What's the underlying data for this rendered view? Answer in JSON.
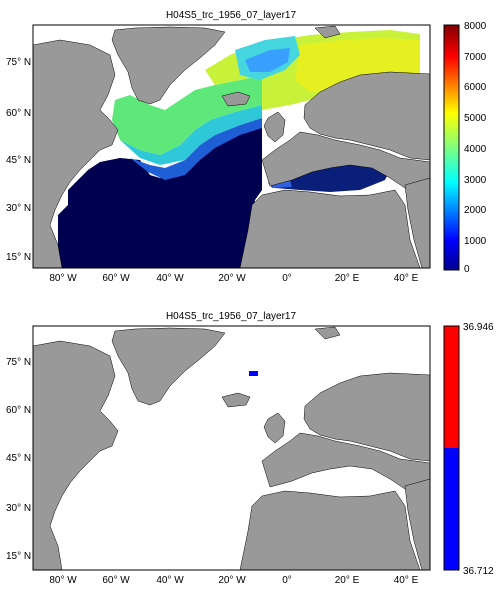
{
  "figure": {
    "panels": [
      {
        "title": "H04S5_trc_1956_07_layer17",
        "xticks": [
          "80° W",
          "60° W",
          "40° W",
          "20° W",
          "0°",
          "20° E",
          "40° E"
        ],
        "yticks": [
          "75° N",
          "60° N",
          "45° N",
          "30° N",
          "15° N"
        ],
        "colorbar": {
          "ticks": [
            "0",
            "1000",
            "2000",
            "3000",
            "4000",
            "5000",
            "6000",
            "7000",
            "8000"
          ],
          "range": [
            0,
            8000
          ],
          "colormap": "jet"
        }
      },
      {
        "title": "H04S5_trc_1956_07_layer17",
        "xticks": [
          "80° W",
          "60° W",
          "40° W",
          "20° W",
          "0°",
          "20° E",
          "40° E"
        ],
        "yticks": [
          "75° N",
          "60° N",
          "45° N",
          "30° N",
          "15° N"
        ],
        "colorbar": {
          "max_label": "36.946",
          "min_label": "36.712",
          "colors": [
            "#ff0000",
            "#0000ff"
          ]
        }
      }
    ],
    "colors": {
      "land": "#999999",
      "ocean_deep": "#000050",
      "no_data": "#ffffff"
    }
  }
}
